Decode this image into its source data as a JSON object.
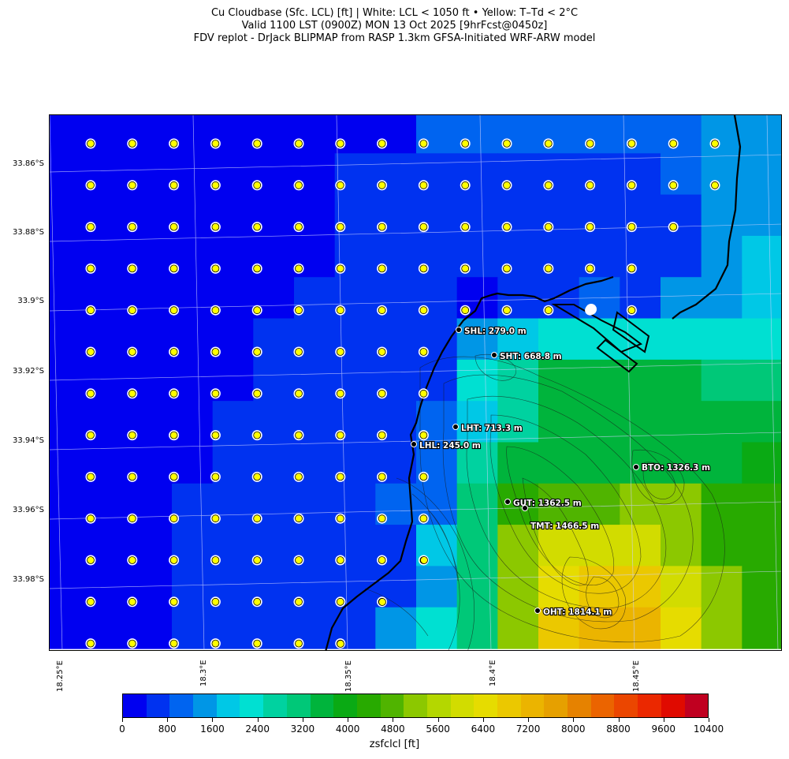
{
  "title": {
    "line1": "Cu Cloudbase (Sfc. LCL) [ft]  |  White: LCL < 1050 ft • Yellow: T–Td < 2°C",
    "line2": "Valid 1100 LST (0900Z) MON 13 Oct 2025 [9hrFcst@0450z]",
    "line3": "FDV replot - DrJack BLIPMAP from RASP 1.3km GFSA-Initiated WRF-ARW model"
  },
  "map": {
    "lat_labels": [
      "33.86°S",
      "33.88°S",
      "33.9°S",
      "33.92°S",
      "33.94°S",
      "33.96°S",
      "33.98°S"
    ],
    "lon_labels": [
      "18.25°E",
      "18.3°E",
      "18.35°E",
      "18.4°E",
      "18.45°E"
    ],
    "stations": [
      {
        "code": "SHL",
        "label": "SHL: 279.0 m"
      },
      {
        "code": "SHT",
        "label": "SHT: 668.8 m"
      },
      {
        "code": "LHT",
        "label": "LHT: 713.3 m"
      },
      {
        "code": "LHL",
        "label": "LHL: 245.0 m"
      },
      {
        "code": "BTO",
        "label": "BTO: 1326.3 m"
      },
      {
        "code": "GUT",
        "label": "GUT: 1362.5 m"
      },
      {
        "code": "TMT",
        "label": "TMT: 1466.5 m"
      },
      {
        "code": "OHT",
        "label": "OHT: 1814.1 m"
      }
    ],
    "marker_colors": {
      "white": "#ffffff",
      "yellow": "#ffff00"
    }
  },
  "colorbar": {
    "label": "zsfclcl [ft]",
    "ticks": [
      "0",
      "800",
      "1600",
      "2400",
      "3200",
      "4000",
      "4800",
      "5600",
      "6400",
      "7200",
      "8000",
      "8800",
      "9600",
      "10400"
    ],
    "colors": [
      "#0000f0",
      "#0032f0",
      "#0064f0",
      "#0096e6",
      "#00c8e6",
      "#00e0d2",
      "#00d2a0",
      "#00c878",
      "#00b43c",
      "#0aaa14",
      "#28aa00",
      "#50b400",
      "#8cc800",
      "#b4d700",
      "#d2dc00",
      "#e6dc00",
      "#ebc800",
      "#ebb400",
      "#e6a000",
      "#e68200",
      "#eb6400",
      "#eb4600",
      "#eb2800",
      "#e00a00",
      "#c00020"
    ]
  }
}
